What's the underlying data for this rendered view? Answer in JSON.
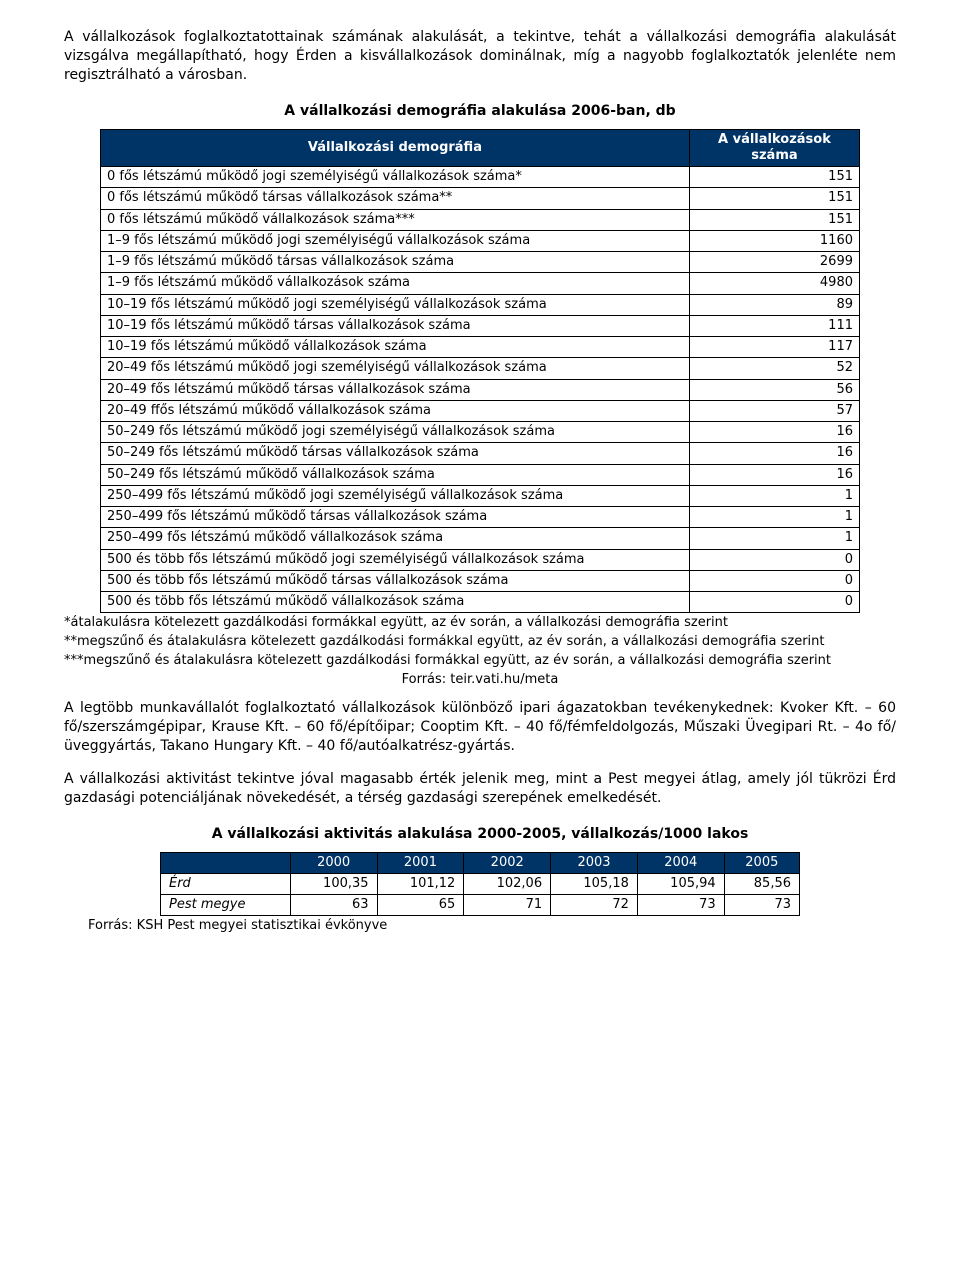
{
  "para1": "A vállalkozások foglalkoztatottainak számának alakulását, a tekintve, tehát a vállalkozási demográfia alakulását vizsgálva megállapítható, hogy Érden a kisvállalkozások dominálnak, míg a nagyobb foglalkoztatók jelenléte nem regisztrálható a városban.",
  "table1": {
    "title": "A vállalkozási demográfia alakulása 2006-ban, db",
    "header_label": "Vállalkozási demográfia",
    "header_value": "A vállalkozások száma",
    "rows": [
      {
        "label": "0 fős létszámú működő jogi személyiségű vállalkozások száma*",
        "value": "151"
      },
      {
        "label": "0 fős létszámú működő társas vállalkozások száma**",
        "value": "151"
      },
      {
        "label": "0 fős létszámú működő vállalkozások száma***",
        "value": "151"
      },
      {
        "label": "1–9 fős létszámú működő jogi személyiségű vállalkozások száma",
        "value": "1160"
      },
      {
        "label": "1–9 fős létszámú működő társas vállalkozások száma",
        "value": "2699"
      },
      {
        "label": "1–9 fős létszámú működő vállalkozások száma",
        "value": "4980"
      },
      {
        "label": "10–19 fős létszámú működő jogi személyiségű vállalkozások száma",
        "value": "89"
      },
      {
        "label": "10–19 fős létszámú működő társas vállalkozások száma",
        "value": "111"
      },
      {
        "label": "10–19 fős létszámú működő vállalkozások száma",
        "value": "117"
      },
      {
        "label": "20–49 fős létszámú működő jogi személyiségű vállalkozások száma",
        "value": "52"
      },
      {
        "label": "20–49 fős létszámú működő társas vállalkozások száma",
        "value": "56"
      },
      {
        "label": "20–49 ffős létszámú működő vállalkozások száma",
        "value": "57"
      },
      {
        "label": "50–249 fős létszámú működő jogi személyiségű vállalkozások száma",
        "value": "16"
      },
      {
        "label": "50–249 fős létszámú működő társas vállalkozások száma",
        "value": "16"
      },
      {
        "label": "50–249 fős létszámú működő vállalkozások száma",
        "value": "16"
      },
      {
        "label": "250–499  fős létszámú  működő jogi személyiségű vállalkozások száma",
        "value": "1"
      },
      {
        "label": "250–499 fős létszámú működő társas vállalkozások száma",
        "value": "1"
      },
      {
        "label": "250–499 fős létszámú működő vállalkozások száma",
        "value": "1"
      },
      {
        "label": "500 és több fős létszámú működő jogi személyiségű vállalkozások száma",
        "value": "0"
      },
      {
        "label": "500 és több fős létszámú működő társas vállalkozások száma",
        "value": "0"
      },
      {
        "label": "500 és több fős létszámú működő vállalkozások száma",
        "value": "0"
      }
    ],
    "footnotes": [
      "*átalakulásra kötelezett gazdálkodási formákkal együtt, az év során, a vállalkozási demográfia szerint",
      "**megszűnő és átalakulásra kötelezett gazdálkodási formákkal együtt, az év során, a vállalkozási demográfia szerint",
      "***megszűnő és átalakulásra kötelezett gazdálkodási formákkal együtt, az év során, a vállalkozási demográfia szerint"
    ],
    "source": "Forrás: teir.vati.hu/meta"
  },
  "para2": "A legtöbb munkavállalót foglalkoztató vállalkozások különböző ipari ágazatokban tevékenykednek: Kvoker Kft. – 60 fő/szerszámgépipar, Krause Kft. – 60 fő/építőipar; Cooptim Kft. – 40 fő/fémfeldolgozás, Műszaki Üvegipari Rt. – 4o fő/üveggyártás, Takano Hungary Kft. – 40 fő/autóalkatrész-gyártás.",
  "para3": "A vállalkozási aktivitást tekintve jóval magasabb érték jelenik meg, mint a Pest megyei átlag, amely jól tükrözi Érd gazdasági potenciáljának növekedését, a térség gazdasági szerepének emelkedését.",
  "table2": {
    "title": "A vállalkozási aktivitás alakulása 2000-2005, vállalkozás/1000 lakos",
    "years": [
      "2000",
      "2001",
      "2002",
      "2003",
      "2004",
      "2005"
    ],
    "rows": [
      {
        "label": "Érd",
        "values": [
          "100,35",
          "101,12",
          "102,06",
          "105,18",
          "105,94",
          "85,56"
        ]
      },
      {
        "label": "Pest megye",
        "values": [
          "63",
          "65",
          "71",
          "72",
          "73",
          "73"
        ]
      }
    ],
    "source": "Forrás: KSH Pest megyei statisztikai évkönyve"
  },
  "colors": {
    "header_bg": "#003366",
    "header_fg": "#ffffff",
    "border": "#000000",
    "text": "#000000",
    "page_bg": "#ffffff"
  }
}
